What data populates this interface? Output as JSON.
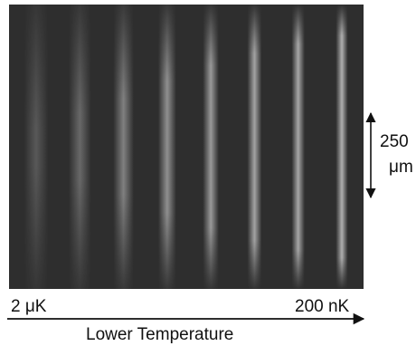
{
  "figure": {
    "left_label": "2 μK",
    "right_label": "200 nK",
    "bottom_label": "Lower Temperature",
    "scale_value": "250",
    "scale_unit": "μm"
  },
  "stripes": [
    {
      "sharpness": 0.15,
      "intensity": 0.22
    },
    {
      "sharpness": 0.28,
      "intensity": 0.3
    },
    {
      "sharpness": 0.4,
      "intensity": 0.42
    },
    {
      "sharpness": 0.55,
      "intensity": 0.5
    },
    {
      "sharpness": 0.68,
      "intensity": 0.55
    },
    {
      "sharpness": 0.78,
      "intensity": 0.6
    },
    {
      "sharpness": 0.86,
      "intensity": 0.62
    },
    {
      "sharpness": 0.93,
      "intensity": 0.66
    }
  ],
  "colors": {
    "background": "#2e2e2e",
    "stripe": "#f2f2f2",
    "text": "#111111"
  }
}
